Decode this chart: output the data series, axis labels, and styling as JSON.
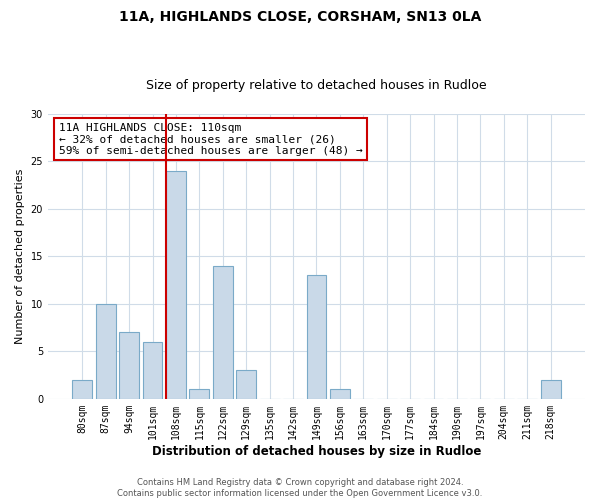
{
  "title": "11A, HIGHLANDS CLOSE, CORSHAM, SN13 0LA",
  "subtitle": "Size of property relative to detached houses in Rudloe",
  "xlabel": "Distribution of detached houses by size in Rudloe",
  "ylabel": "Number of detached properties",
  "bin_labels": [
    "80sqm",
    "87sqm",
    "94sqm",
    "101sqm",
    "108sqm",
    "115sqm",
    "122sqm",
    "129sqm",
    "135sqm",
    "142sqm",
    "149sqm",
    "156sqm",
    "163sqm",
    "170sqm",
    "177sqm",
    "184sqm",
    "190sqm",
    "197sqm",
    "204sqm",
    "211sqm",
    "218sqm"
  ],
  "values": [
    2,
    10,
    7,
    6,
    24,
    1,
    14,
    3,
    0,
    0,
    13,
    1,
    0,
    0,
    0,
    0,
    0,
    0,
    0,
    0,
    2
  ],
  "bar_color": "#c9d9e8",
  "bar_edge_color": "#7aaac8",
  "highlight_index": 4,
  "highlight_line_color": "#cc0000",
  "annotation_line1": "11A HIGHLANDS CLOSE: 110sqm",
  "annotation_line2": "← 32% of detached houses are smaller (26)",
  "annotation_line3": "59% of semi-detached houses are larger (48) →",
  "annotation_box_color": "#ffffff",
  "annotation_box_edge_color": "#cc0000",
  "ylim": [
    0,
    30
  ],
  "yticks": [
    0,
    5,
    10,
    15,
    20,
    25,
    30
  ],
  "footer_text": "Contains HM Land Registry data © Crown copyright and database right 2024.\nContains public sector information licensed under the Open Government Licence v3.0.",
  "background_color": "#ffffff",
  "grid_color": "#d0dce8",
  "title_fontsize": 10,
  "subtitle_fontsize": 9,
  "xlabel_fontsize": 8.5,
  "ylabel_fontsize": 8,
  "tick_fontsize": 7,
  "annotation_fontsize": 8,
  "footer_fontsize": 6
}
